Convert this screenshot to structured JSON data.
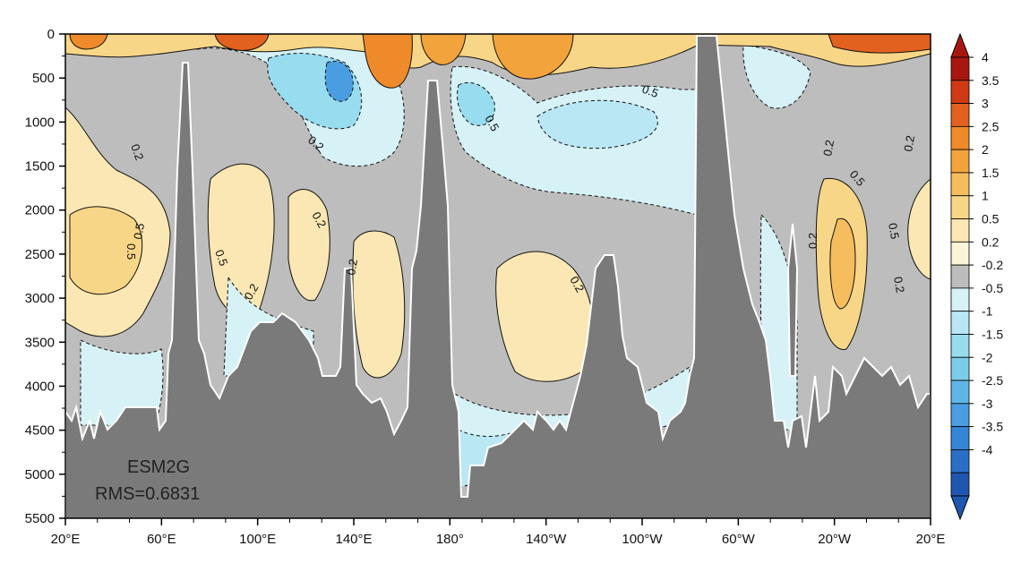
{
  "chart_data": {
    "type": "heatmap",
    "subtype": "ocean depth section (contour-filled)",
    "x_ticks": [
      "20°E",
      "60°E",
      "100°E",
      "140°E",
      "180°",
      "140°W",
      "100°W",
      "60°W",
      "20°W",
      "20°E"
    ],
    "y_ticks": [
      "0",
      "500",
      "1000",
      "1500",
      "2000",
      "2500",
      "3000",
      "3500",
      "4000",
      "4500",
      "5000",
      "5500"
    ],
    "ylim": [
      0,
      5500
    ],
    "y_inverted": true,
    "annotations": {
      "model": "ESM2G",
      "rms": "RMS=0.6831"
    },
    "contour_labels": [
      "0.2",
      "0.5",
      "0.2",
      "0.5",
      "0.2",
      "0.2",
      "0.5",
      "0.2",
      "0.5",
      "0.2",
      "0.5",
      "0.2",
      "0.2",
      "0.2",
      "0.5",
      "0.2",
      "0.5"
    ],
    "colorbar": {
      "labels": [
        "4",
        "3.5",
        "3",
        "2.5",
        "2",
        "1.5",
        "1",
        "0.5",
        "0.2",
        "-0.2",
        "-0.5",
        "-1",
        "-1.5",
        "-2",
        "-2.5",
        "-3",
        "-3.5",
        "-4"
      ],
      "colors": [
        "#a8170f",
        "#cf3a14",
        "#e3611f",
        "#ee8a2a",
        "#f3a33c",
        "#f6bd5e",
        "#f8d687",
        "#fbe7b3",
        "#fdf5d8",
        "#bdbdbd",
        "#d6f2f7",
        "#b9e8f4",
        "#98dcf0",
        "#7ccdeb",
        "#5fb6e6",
        "#4a9de0",
        "#3585d7",
        "#2a6fc7",
        "#1f57b0"
      ],
      "overflow_top_color": "#a8170f",
      "overflow_bottom_color": "#1f57b0"
    },
    "colors": {
      "land": "#7a7a7a",
      "neutral": "#bdbdbd"
    }
  }
}
